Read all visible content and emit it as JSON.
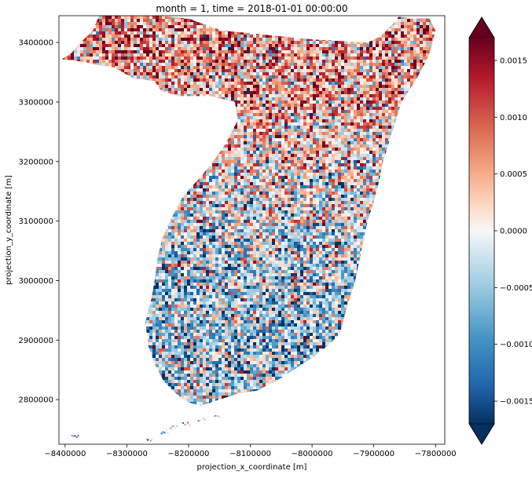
{
  "chart_data": {
    "type": "heatmap",
    "title": "month = 1, time = 2018-01-01 00:00:00",
    "xlabel": "projection_x_coordinate [m]",
    "ylabel": "projection_y_coordinate [m]",
    "xlim": [
      -8410000,
      -7785000
    ],
    "ylim": [
      2725000,
      3445000
    ],
    "x_ticks": [
      {
        "value": -8400000,
        "label": "−8400000"
      },
      {
        "value": -8300000,
        "label": "−8300000"
      },
      {
        "value": -8200000,
        "label": "−8200000"
      },
      {
        "value": -8100000,
        "label": "−8100000"
      },
      {
        "value": -8000000,
        "label": "−8000000"
      },
      {
        "value": -7900000,
        "label": "−7900000"
      },
      {
        "value": -7800000,
        "label": "−7800000"
      }
    ],
    "y_ticks": [
      {
        "value": 2800000,
        "label": "2800000"
      },
      {
        "value": 2900000,
        "label": "2900000"
      },
      {
        "value": 3000000,
        "label": "3000000"
      },
      {
        "value": 3100000,
        "label": "3100000"
      },
      {
        "value": 3200000,
        "label": "3200000"
      },
      {
        "value": 3300000,
        "label": "3300000"
      },
      {
        "value": 3400000,
        "label": "3400000"
      }
    ],
    "colorbar": {
      "colormap": "RdBu_r",
      "range": [
        -0.0017,
        0.0017
      ],
      "extend": "both",
      "ticks": [
        {
          "value": -0.0015,
          "label": "−0.0015"
        },
        {
          "value": -0.001,
          "label": "−0.0010"
        },
        {
          "value": -0.0005,
          "label": "−0.0005"
        },
        {
          "value": 0.0,
          "label": "0.0000"
        },
        {
          "value": 0.0005,
          "label": "0.0005"
        },
        {
          "value": 0.001,
          "label": "0.0010"
        },
        {
          "value": 0.0015,
          "label": "0.0015"
        }
      ]
    },
    "region_trend": [
      {
        "y": 3400000,
        "mean_value": 0.0006
      },
      {
        "y": 3300000,
        "mean_value": 0.0005
      },
      {
        "y": 3200000,
        "mean_value": 0.0001
      },
      {
        "y": 3100000,
        "mean_value": -0.0002
      },
      {
        "y": 3000000,
        "mean_value": -0.0004
      },
      {
        "y": 2900000,
        "mean_value": -0.0005
      },
      {
        "y": 2800000,
        "mean_value": -0.0003
      }
    ],
    "land_outline": [
      [
        -8405000,
        3372000
      ],
      [
        -8390000,
        3382000
      ],
      [
        -8375000,
        3400000
      ],
      [
        -8355000,
        3420000
      ],
      [
        -8345000,
        3445000
      ],
      [
        -8250000,
        3445000
      ],
      [
        -8200000,
        3440000
      ],
      [
        -8145000,
        3420000
      ],
      [
        -8095000,
        3415000
      ],
      [
        -8000000,
        3405000
      ],
      [
        -7910000,
        3400000
      ],
      [
        -7890000,
        3410000
      ],
      [
        -7870000,
        3430000
      ],
      [
        -7860000,
        3443000
      ],
      [
        -7810000,
        3440000
      ],
      [
        -7800000,
        3420000
      ],
      [
        -7810000,
        3380000
      ],
      [
        -7830000,
        3340000
      ],
      [
        -7855000,
        3300000
      ],
      [
        -7870000,
        3250000
      ],
      [
        -7885000,
        3200000
      ],
      [
        -7895000,
        3150000
      ],
      [
        -7910000,
        3100000
      ],
      [
        -7920000,
        3050000
      ],
      [
        -7930000,
        3000000
      ],
      [
        -7945000,
        2950000
      ],
      [
        -7955000,
        2910000
      ],
      [
        -7975000,
        2890000
      ],
      [
        -8000000,
        2870000
      ],
      [
        -8030000,
        2850000
      ],
      [
        -8060000,
        2830000
      ],
      [
        -8090000,
        2815000
      ],
      [
        -8120000,
        2810000
      ],
      [
        -8150000,
        2800000
      ],
      [
        -8180000,
        2790000
      ],
      [
        -8200000,
        2795000
      ],
      [
        -8220000,
        2810000
      ],
      [
        -8240000,
        2830000
      ],
      [
        -8255000,
        2860000
      ],
      [
        -8265000,
        2890000
      ],
      [
        -8270000,
        2930000
      ],
      [
        -8260000,
        2970000
      ],
      [
        -8255000,
        3000000
      ],
      [
        -8250000,
        3040000
      ],
      [
        -8240000,
        3080000
      ],
      [
        -8225000,
        3110000
      ],
      [
        -8210000,
        3140000
      ],
      [
        -8180000,
        3175000
      ],
      [
        -8160000,
        3200000
      ],
      [
        -8140000,
        3230000
      ],
      [
        -8120000,
        3270000
      ],
      [
        -8125000,
        3300000
      ],
      [
        -8165000,
        3310000
      ],
      [
        -8220000,
        3310000
      ],
      [
        -8245000,
        3320000
      ],
      [
        -8255000,
        3335000
      ],
      [
        -8290000,
        3340000
      ],
      [
        -8320000,
        3358000
      ],
      [
        -8345000,
        3362000
      ],
      [
        -8375000,
        3368000
      ]
    ]
  }
}
